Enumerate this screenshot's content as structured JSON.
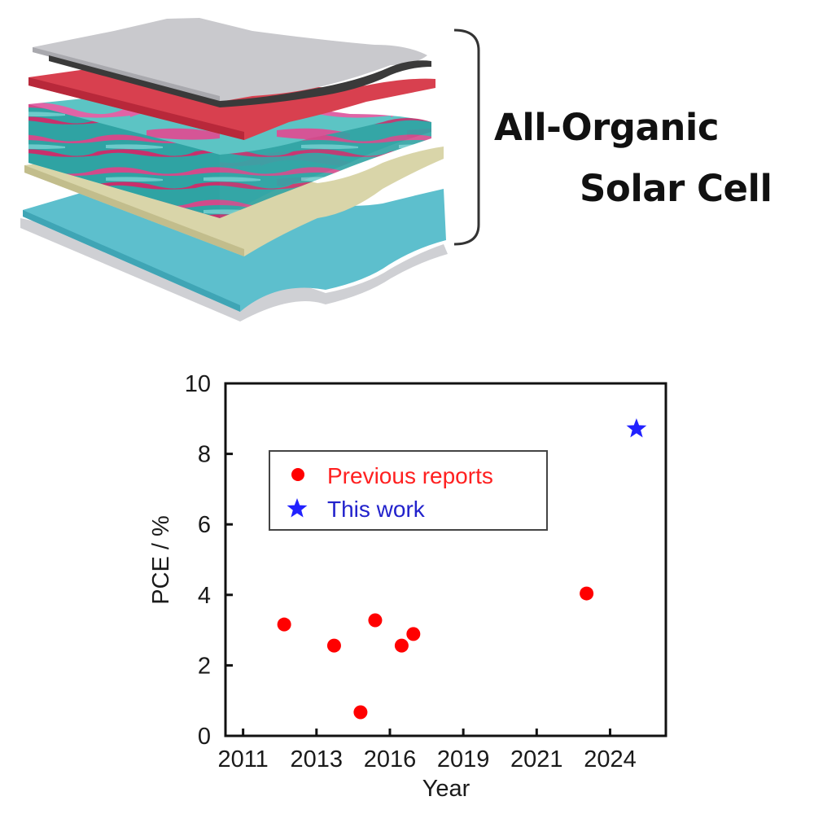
{
  "figure": {
    "title_line_1": "All-Organic",
    "title_line_2": "Solar Cell",
    "layers": [
      {
        "name": "top-electrode",
        "color": "#c9c9cd",
        "edge_color": "#3a3a3a"
      },
      {
        "name": "red-layer",
        "color": "#d8404f"
      },
      {
        "name": "active-layer-blend",
        "color": "#2fa3a3",
        "accent_color": "#d24a8a"
      },
      {
        "name": "beige-layer",
        "color": "#d9d5a9"
      },
      {
        "name": "blue-layer",
        "color": "#5dbfcd"
      },
      {
        "name": "substrate",
        "color": "#cfd0d4"
      }
    ]
  },
  "chart_data": {
    "type": "scatter",
    "title": "",
    "xlabel": "Year",
    "ylabel": "PCE / %",
    "xlim": [
      2010.9,
      2025.9
    ],
    "ylim": [
      0,
      10
    ],
    "x_tick_labels": [
      "2011",
      "2013",
      "2016",
      "2019",
      "2021",
      "2024"
    ],
    "y_tick_labels": [
      "0",
      "2",
      "4",
      "6",
      "8",
      "10"
    ],
    "grid": false,
    "legend_position": "upper-left (inset box)",
    "series": [
      {
        "name": "Previous reports",
        "marker": "circle",
        "color": "#ff0000",
        "points": [
          {
            "x": 2012.9,
            "y": 3.16
          },
          {
            "x": 2014.6,
            "y": 2.56
          },
          {
            "x": 2015.5,
            "y": 0.67
          },
          {
            "x": 2016.0,
            "y": 3.28
          },
          {
            "x": 2016.9,
            "y": 2.56
          },
          {
            "x": 2017.3,
            "y": 2.89
          },
          {
            "x": 2023.2,
            "y": 4.04
          }
        ]
      },
      {
        "name": "This work",
        "marker": "star",
        "color": "#2222ff",
        "points": [
          {
            "x": 2024.9,
            "y": 8.71
          }
        ]
      }
    ]
  }
}
